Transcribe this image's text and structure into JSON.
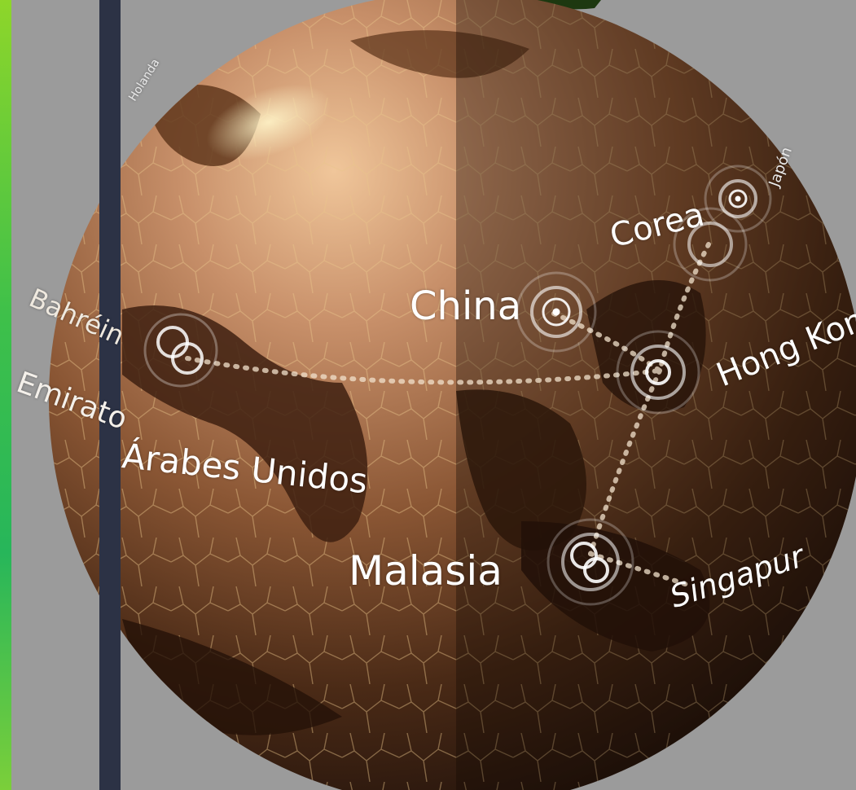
{
  "labels": {
    "china": "China",
    "corea": "Corea",
    "hong_kong": "Hong Kong",
    "malasia": "Malasia",
    "singapur": "Singapur",
    "arabes_unidos": "Árabes Unidos",
    "emirato": "Emirato",
    "bahrein": "Bahréin",
    "japon": "Japón",
    "holanda": "Holanda"
  },
  "colors": {
    "background": "#9b9b9b",
    "globe_light": "#c8906a",
    "globe_dark": "#2e1a10",
    "land_dark": "#5a3218",
    "accent_green": "#3ec04a",
    "side_bar": "#2c3245"
  }
}
